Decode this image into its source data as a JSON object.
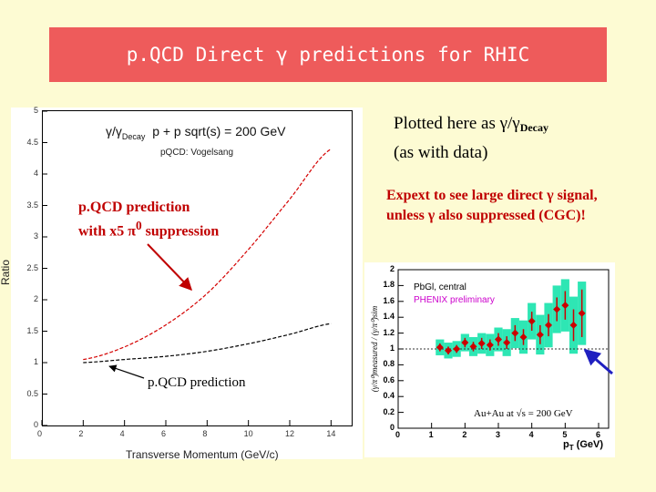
{
  "slide": {
    "title": "p.QCD Direct γ predictions for RHIC",
    "plotted_prefix": "Plotted here as γ/γ",
    "plotted_sub": "Decay",
    "plotted_note": "(as with data)",
    "expect_line1": "Expext to see large direct γ signal,",
    "expect_line2": "unless γ also suppressed (CGC)!"
  },
  "left_plot": {
    "legend_gamma": "γ/γ",
    "legend_gamma_sub": "Decay",
    "legend_system": "p + p sqrt(s) = 200 GeV",
    "legend_model": "pQCD: Vogelsang",
    "ylabel": "Ratio",
    "xlabel": "Transverse Momentum (GeV/c)",
    "yticks": [
      "5",
      "4.5",
      "4",
      "3.5",
      "3",
      "2.5",
      "2",
      "1.5",
      "1",
      "0.5",
      "0"
    ],
    "xticks": [
      "0",
      "2",
      "4",
      "6",
      "8",
      "10",
      "12",
      "14"
    ],
    "ann_red_line1": "p.QCD prediction",
    "ann_red_line2": "with x5 π",
    "ann_red_sup": "0",
    "ann_red_suffix": " suppression",
    "ann_black": "p.QCD prediction"
  },
  "right_plot": {
    "legend1": "PbGl, central",
    "legend2": "PHENIX preliminary",
    "system_text": "Au+Au at √s",
    "system_value": " = 200 GeV",
    "xlabel": "p",
    "xlabel_sub": "T",
    "xlabel_unit": " (GeV)",
    "yticks": [
      "2",
      "1.8",
      "1.6",
      "1.4",
      "1.2",
      "1",
      "0.8",
      "0.6",
      "0.4",
      "0.2",
      "0"
    ],
    "xticks": [
      "0",
      "1",
      "2",
      "3",
      "4",
      "5",
      "6"
    ]
  },
  "chart_data": [
    {
      "type": "line",
      "title": "",
      "xlabel": "Transverse Momentum (GeV/c)",
      "ylabel": "Ratio",
      "xlim": [
        0,
        15
      ],
      "ylim": [
        0,
        5
      ],
      "grid": false,
      "series": [
        {
          "x": [
            2,
            4,
            6,
            8,
            10,
            12,
            14
          ],
          "y": [
            1.05,
            1.25,
            1.6,
            2.1,
            2.8,
            3.6,
            4.4
          ],
          "color": "#d40000",
          "dash": true
        },
        {
          "x": [
            2,
            4,
            6,
            8,
            10,
            12,
            14
          ],
          "y": [
            1.0,
            1.05,
            1.1,
            1.18,
            1.3,
            1.45,
            1.62
          ],
          "color": "#000000",
          "dash": true
        }
      ]
    },
    {
      "type": "scatter",
      "title": "",
      "xlabel": "pT (GeV)",
      "ylabel": "(γ/π⁰)measured / (γ/π⁰)sim",
      "xlim": [
        0,
        6.3
      ],
      "ylim": [
        0,
        2
      ],
      "grid": false,
      "x": [
        1.25,
        1.5,
        1.75,
        2.0,
        2.25,
        2.5,
        2.75,
        3.0,
        3.25,
        3.5,
        3.75,
        4.0,
        4.25,
        4.5,
        4.75,
        5.0,
        5.25,
        5.5
      ],
      "y": [
        1.02,
        0.98,
        1.0,
        1.08,
        1.03,
        1.07,
        1.05,
        1.12,
        1.08,
        1.2,
        1.15,
        1.35,
        1.18,
        1.3,
        1.5,
        1.55,
        1.3,
        1.45
      ],
      "err": [
        0.05,
        0.05,
        0.05,
        0.06,
        0.06,
        0.07,
        0.07,
        0.08,
        0.08,
        0.1,
        0.1,
        0.12,
        0.12,
        0.14,
        0.15,
        0.18,
        0.2,
        0.3
      ],
      "sys_band": [
        0.1,
        0.1,
        0.1,
        0.11,
        0.12,
        0.13,
        0.14,
        0.15,
        0.17,
        0.19,
        0.21,
        0.23,
        0.25,
        0.28,
        0.3,
        0.33,
        0.36,
        0.4
      ],
      "reference_line_y": 1,
      "marker_color": "#cc0000",
      "band_color": "#2ee6b4"
    }
  ],
  "colors": {
    "title_bg": "#ee5b5b",
    "slide_bg": "#fdfbd3",
    "annotation_red": "#c00000",
    "arrow_blue": "#2020c0"
  }
}
